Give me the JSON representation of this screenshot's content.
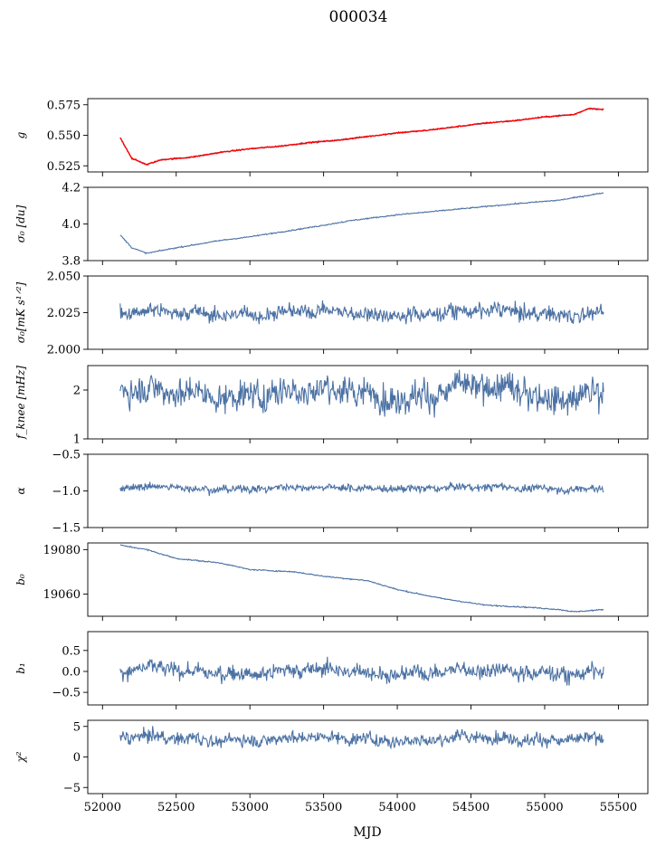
{
  "title": "000034",
  "xlabel": "MJD",
  "x_ticks": [
    52000,
    52500,
    53000,
    53500,
    54000,
    54500,
    55000,
    55500
  ],
  "xlim": [
    51900,
    55700
  ],
  "colors": {
    "series": "#4c72a4",
    "highlight": "#ff0000"
  },
  "chart_data": [
    {
      "type": "line",
      "ylabel": "g",
      "ylim": [
        0.52,
        0.58
      ],
      "y_ticks": [
        0.525,
        0.55,
        0.575
      ],
      "tick_labels": [
        "0.525",
        "0.550",
        "0.575"
      ],
      "series": [
        {
          "x_range": [
            52120,
            55400
          ],
          "color": "#4c72a4",
          "pattern": "trend",
          "points": [
            [
              52120,
              0.548
            ],
            [
              52200,
              0.531
            ],
            [
              52300,
              0.526
            ],
            [
              52400,
              0.53
            ],
            [
              52600,
              0.532
            ],
            [
              52800,
              0.536
            ],
            [
              53000,
              0.539
            ],
            [
              53200,
              0.541
            ],
            [
              53400,
              0.544
            ],
            [
              53600,
              0.546
            ],
            [
              53800,
              0.549
            ],
            [
              54000,
              0.552
            ],
            [
              54200,
              0.554
            ],
            [
              54400,
              0.557
            ],
            [
              54600,
              0.56
            ],
            [
              54800,
              0.562
            ],
            [
              55000,
              0.565
            ],
            [
              55200,
              0.567
            ],
            [
              55300,
              0.572
            ],
            [
              55400,
              0.571
            ]
          ]
        },
        {
          "x_range": [
            52120,
            55400
          ],
          "color": "#ff0000",
          "pattern": "trend",
          "points": [
            [
              52120,
              0.548
            ],
            [
              52200,
              0.531
            ],
            [
              52300,
              0.526
            ],
            [
              52400,
              0.53
            ],
            [
              52600,
              0.532
            ],
            [
              52800,
              0.536
            ],
            [
              53000,
              0.539
            ],
            [
              53200,
              0.541
            ],
            [
              53400,
              0.544
            ],
            [
              53600,
              0.546
            ],
            [
              53800,
              0.549
            ],
            [
              54000,
              0.552
            ],
            [
              54200,
              0.554
            ],
            [
              54400,
              0.557
            ],
            [
              54600,
              0.56
            ],
            [
              54800,
              0.562
            ],
            [
              55000,
              0.565
            ],
            [
              55200,
              0.567
            ],
            [
              55300,
              0.572
            ],
            [
              55400,
              0.571
            ]
          ]
        }
      ]
    },
    {
      "type": "line",
      "ylabel": "σ₀ [du]",
      "ylim": [
        3.8,
        4.2
      ],
      "y_ticks": [
        3.8,
        4.0,
        4.2
      ],
      "tick_labels": [
        "3.8",
        "4.0",
        "4.2"
      ],
      "series": [
        {
          "x_range": [
            52120,
            55400
          ],
          "color": "#4c72a4",
          "pattern": "trend",
          "points": [
            [
              52120,
              3.94
            ],
            [
              52200,
              3.87
            ],
            [
              52300,
              3.84
            ],
            [
              52500,
              3.87
            ],
            [
              52800,
              3.91
            ],
            [
              53000,
              3.93
            ],
            [
              53400,
              3.98
            ],
            [
              53700,
              4.02
            ],
            [
              54000,
              4.05
            ],
            [
              54400,
              4.08
            ],
            [
              54800,
              4.11
            ],
            [
              55100,
              4.13
            ],
            [
              55400,
              4.17
            ]
          ]
        }
      ]
    },
    {
      "type": "line",
      "ylabel": "σ₀[mK s¹ᐟ²]",
      "ylim": [
        2.0,
        2.05
      ],
      "y_ticks": [
        2.0,
        2.025,
        2.05
      ],
      "tick_labels": [
        "2.000",
        "2.025",
        "2.050"
      ],
      "series": [
        {
          "x_range": [
            52120,
            55400
          ],
          "color": "#4c72a4",
          "pattern": "noise",
          "mean": 2.025,
          "amp": 0.006
        }
      ]
    },
    {
      "type": "line",
      "ylabel": "f_knee [mHz]",
      "ylim": [
        1.0,
        2.5
      ],
      "y_ticks": [
        1,
        2
      ],
      "tick_labels": [
        "1",
        "2"
      ],
      "series": [
        {
          "x_range": [
            52120,
            55400
          ],
          "color": "#4c72a4",
          "pattern": "noise",
          "mean": 1.95,
          "amp": 0.35
        }
      ]
    },
    {
      "type": "line",
      "ylabel": "α",
      "ylim": [
        -1.5,
        -0.5
      ],
      "y_ticks": [
        -1.5,
        -1.0,
        -0.5
      ],
      "tick_labels": [
        "−1.5",
        "−1.0",
        "−0.5"
      ],
      "series": [
        {
          "x_range": [
            52120,
            55400
          ],
          "color": "#4c72a4",
          "pattern": "noise",
          "mean": -0.96,
          "amp": 0.06
        }
      ]
    },
    {
      "type": "line",
      "ylabel": "b₀",
      "ylim": [
        19050,
        19083
      ],
      "y_ticks": [
        19060,
        19080
      ],
      "tick_labels": [
        "19060",
        "19080"
      ],
      "series": [
        {
          "x_range": [
            52120,
            55400
          ],
          "color": "#4c72a4",
          "pattern": "trend",
          "points": [
            [
              52120,
              19082
            ],
            [
              52300,
              19080
            ],
            [
              52500,
              19076
            ],
            [
              52800,
              19074
            ],
            [
              53000,
              19071
            ],
            [
              53300,
              19070
            ],
            [
              53500,
              19068
            ],
            [
              53800,
              19066
            ],
            [
              54000,
              19062
            ],
            [
              54300,
              19058
            ],
            [
              54600,
              19055
            ],
            [
              54900,
              19054
            ],
            [
              55100,
              19053
            ],
            [
              55200,
              19052
            ],
            [
              55400,
              19053
            ]
          ]
        }
      ]
    },
    {
      "type": "line",
      "ylabel": "b₁",
      "ylim": [
        -0.8,
        0.95
      ],
      "y_ticks": [
        -0.5,
        0.0,
        0.5
      ],
      "tick_labels": [
        "−0.5",
        "0.0",
        "0.5"
      ],
      "series": [
        {
          "x_range": [
            52120,
            55400
          ],
          "color": "#4c72a4",
          "pattern": "noise",
          "mean": 0.0,
          "amp": 0.22
        }
      ]
    },
    {
      "type": "line",
      "ylabel": "χ²",
      "ylim": [
        -6,
        6
      ],
      "y_ticks": [
        -5,
        0,
        5
      ],
      "tick_labels": [
        "−5",
        "0",
        "5"
      ],
      "series": [
        {
          "x_range": [
            52120,
            55400
          ],
          "color": "#4c72a4",
          "pattern": "noise",
          "mean": 3.0,
          "amp": 1.2
        }
      ]
    }
  ]
}
